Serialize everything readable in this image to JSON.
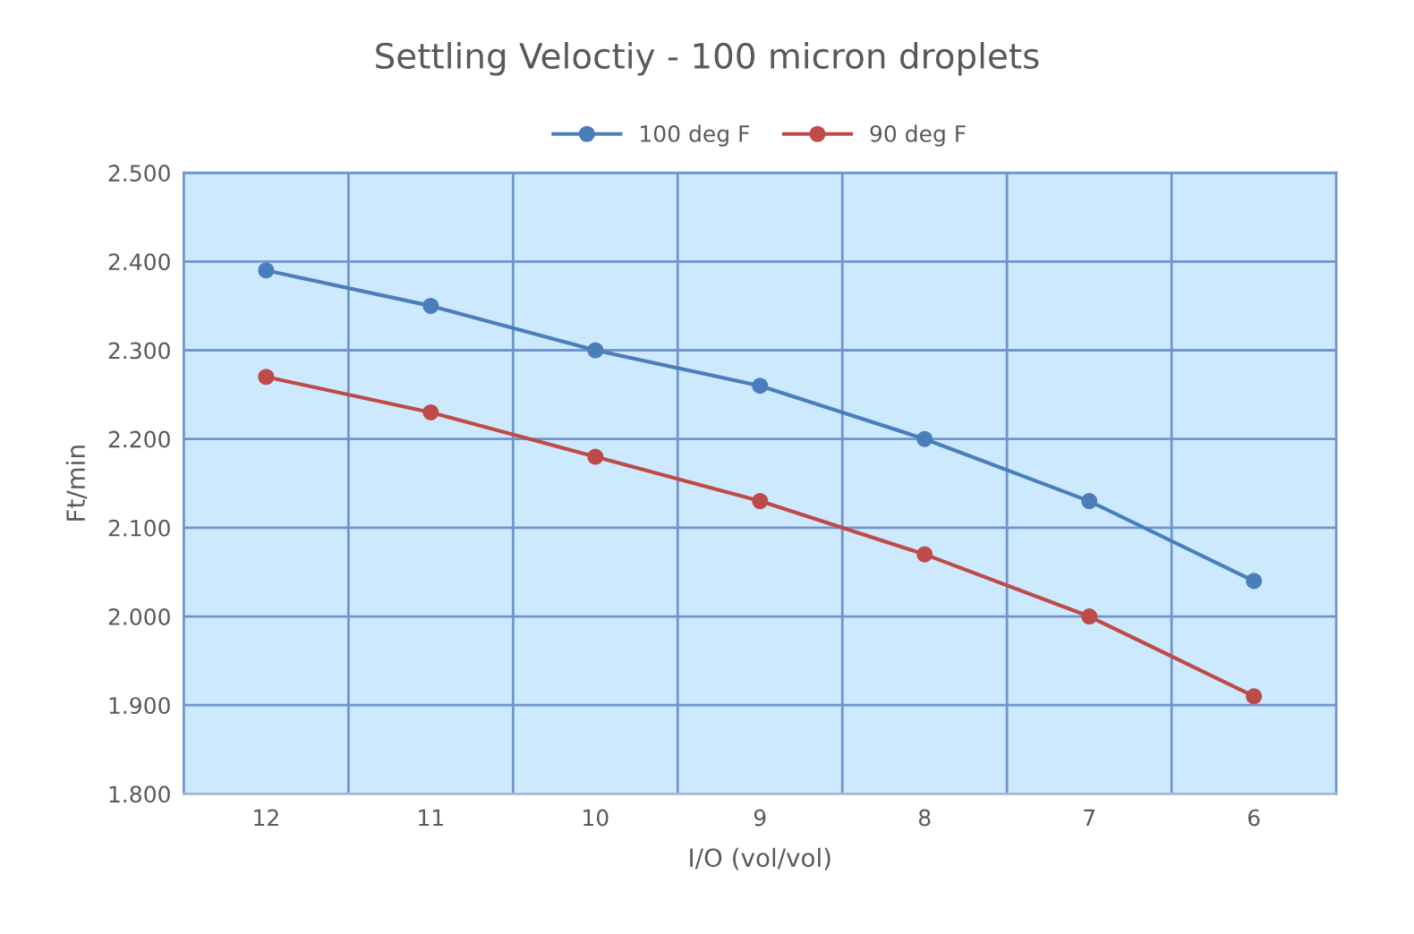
{
  "chart_data": {
    "type": "line",
    "title": "Settling Veloctiy - 100 micron droplets",
    "xlabel": "I/O (vol/vol)",
    "ylabel": "Ft/min",
    "categories": [
      "12",
      "11",
      "10",
      "9",
      "8",
      "7",
      "6"
    ],
    "series": [
      {
        "name": "100 deg F",
        "color": "#4a7ebb",
        "values": [
          2.39,
          2.35,
          2.3,
          2.26,
          2.2,
          2.13,
          2.04
        ]
      },
      {
        "name": "90 deg F",
        "color": "#be4b48",
        "values": [
          2.27,
          2.23,
          2.18,
          2.13,
          2.07,
          2.0,
          1.91
        ]
      }
    ],
    "ylim": [
      1.8,
      2.5
    ],
    "yticks": [
      {
        "value": 1.8,
        "label": "1.800"
      },
      {
        "value": 1.9,
        "label": "1.900"
      },
      {
        "value": 2.0,
        "label": "2.000"
      },
      {
        "value": 2.1,
        "label": "2.100"
      },
      {
        "value": 2.2,
        "label": "2.200"
      },
      {
        "value": 2.3,
        "label": "2.300"
      },
      {
        "value": 2.4,
        "label": "2.400"
      },
      {
        "value": 2.5,
        "label": "2.500"
      }
    ],
    "grid": true,
    "legend": "top",
    "marker": "circle",
    "line_style": "solid"
  }
}
